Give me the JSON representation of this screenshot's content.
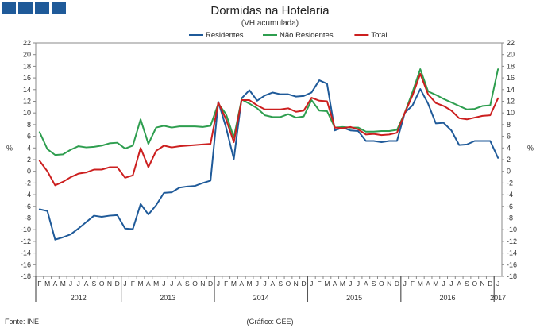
{
  "chart_data": {
    "type": "line",
    "title": "Dormidas na Hotelaria",
    "subtitle": "(VH acumulada)",
    "ylabel": "%",
    "ylim": [
      -18,
      22
    ],
    "yticks": [
      22,
      20,
      18,
      16,
      14,
      12,
      10,
      8,
      6,
      4,
      2,
      0,
      -2,
      -4,
      -6,
      -8,
      -10,
      -12,
      -14,
      -16,
      -18
    ],
    "x": [
      "F",
      "M",
      "A",
      "M",
      "J",
      "J",
      "A",
      "S",
      "O",
      "N",
      "D",
      "J",
      "F",
      "M",
      "A",
      "M",
      "J",
      "J",
      "A",
      "S",
      "O",
      "N",
      "D",
      "J",
      "F",
      "M",
      "A",
      "M",
      "J",
      "J",
      "A",
      "S",
      "O",
      "N",
      "D",
      "J",
      "F",
      "M",
      "A",
      "M",
      "J",
      "J",
      "A",
      "S",
      "O",
      "N",
      "D",
      "J",
      "F",
      "M",
      "A",
      "M",
      "J",
      "J",
      "A",
      "S",
      "O",
      "N",
      "D",
      "J"
    ],
    "years": [
      {
        "label": "2012",
        "start": 0,
        "end": 10
      },
      {
        "label": "2013",
        "start": 11,
        "end": 22
      },
      {
        "label": "2014",
        "start": 23,
        "end": 34
      },
      {
        "label": "2015",
        "start": 35,
        "end": 46
      },
      {
        "label": "2016",
        "start": 47,
        "end": 58
      },
      {
        "label": "2017",
        "start": 59,
        "end": 59
      }
    ],
    "series": [
      {
        "name": "Residentes",
        "color": "#1f5a99",
        "values": [
          -6.5,
          -6.8,
          -11.7,
          -11.3,
          -10.8,
          -9.8,
          -8.7,
          -7.6,
          -7.8,
          -7.6,
          -7.5,
          -9.8,
          -9.9,
          -5.6,
          -7.4,
          -5.8,
          -3.7,
          -3.6,
          -2.8,
          -2.6,
          -2.5,
          -2.0,
          -1.6,
          11.9,
          7.5,
          2.1,
          12.5,
          13.9,
          12.1,
          13.0,
          13.5,
          13.2,
          13.2,
          12.8,
          12.9,
          13.5,
          15.6,
          15.0,
          7.0,
          7.5,
          7.0,
          6.9,
          5.2,
          5.2,
          5.0,
          5.2,
          5.2,
          10.0,
          11.3,
          14.1,
          11.6,
          8.2,
          8.3,
          7.0,
          4.5,
          4.6,
          5.2,
          5.2,
          5.2,
          2.3
        ]
      },
      {
        "name": "Não Residentes",
        "color": "#2e9e4f",
        "values": [
          6.7,
          3.8,
          2.8,
          2.9,
          3.7,
          4.3,
          4.1,
          4.2,
          4.4,
          4.8,
          4.9,
          3.9,
          4.4,
          8.9,
          4.7,
          7.5,
          7.8,
          7.5,
          7.7,
          7.7,
          7.7,
          7.6,
          7.8,
          11.6,
          9.8,
          5.8,
          12.3,
          11.6,
          10.8,
          9.6,
          9.3,
          9.3,
          9.8,
          9.2,
          9.4,
          12.2,
          10.4,
          10.3,
          7.5,
          7.6,
          7.5,
          7.5,
          6.8,
          6.8,
          6.9,
          6.9,
          7.1,
          10.0,
          13.6,
          17.5,
          13.7,
          13.1,
          12.4,
          11.8,
          11.2,
          10.6,
          10.7,
          11.2,
          11.3,
          17.5
        ]
      },
      {
        "name": "Total",
        "color": "#cc1f1f",
        "values": [
          1.8,
          0.0,
          -2.4,
          -1.8,
          -1.0,
          -0.4,
          -0.2,
          0.3,
          0.3,
          0.7,
          0.7,
          -1.1,
          -0.7,
          4.0,
          0.7,
          3.5,
          4.4,
          4.1,
          4.3,
          4.4,
          4.5,
          4.6,
          4.7,
          11.8,
          8.9,
          5.0,
          12.2,
          12.2,
          11.3,
          10.6,
          10.6,
          10.6,
          10.8,
          10.2,
          10.4,
          12.6,
          12.1,
          12.0,
          7.5,
          7.4,
          7.6,
          7.2,
          6.3,
          6.4,
          6.2,
          6.3,
          6.6,
          10.0,
          13.0,
          16.7,
          13.2,
          11.7,
          11.2,
          10.4,
          9.1,
          8.9,
          9.2,
          9.5,
          9.6,
          12.5
        ]
      }
    ]
  },
  "texts": {
    "title": "Dormidas na Hotelaria",
    "subtitle": "(VH acumulada)",
    "source": "Fonte: INE",
    "credit": "(Gráfico: GEE)"
  }
}
